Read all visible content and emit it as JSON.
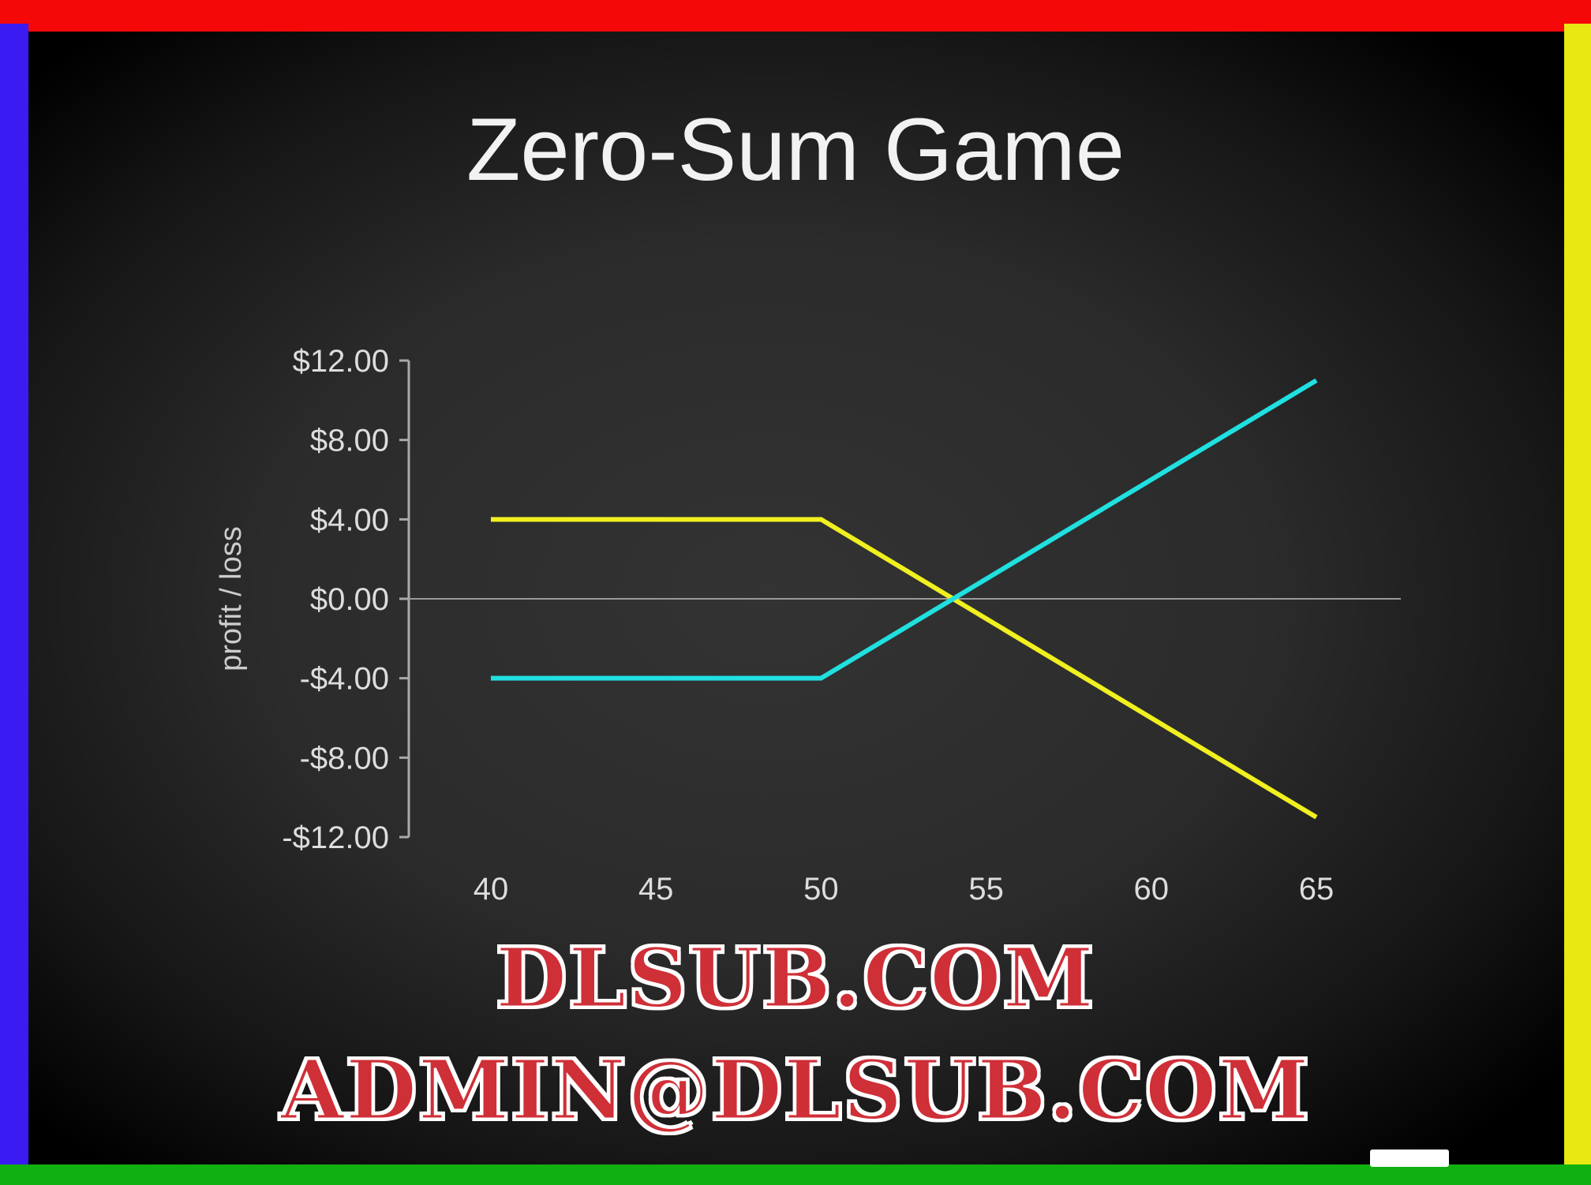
{
  "chart_data": {
    "type": "line",
    "title": "Zero-Sum Game",
    "ylabel": "profit / loss",
    "xlabel": "",
    "x_ticks": [
      "40",
      "45",
      "50",
      "55",
      "60",
      "65"
    ],
    "y_ticks": [
      "$12.00",
      "$8.00",
      "$4.00",
      "$0.00",
      "-$4.00",
      "-$8.00",
      "-$12.00"
    ],
    "xlim": [
      40,
      65
    ],
    "ylim": [
      -12,
      12
    ],
    "grid": false,
    "series": [
      {
        "color": "#f0f020",
        "x": [
          40,
          50,
          65
        ],
        "y": [
          4,
          4,
          -11
        ]
      },
      {
        "color": "#20e0e0",
        "x": [
          40,
          50,
          65
        ],
        "y": [
          -4,
          -4,
          11
        ]
      }
    ]
  },
  "watermark": {
    "line1": "DLSUB.COM",
    "line2": "ADMIN@DLSUB.COM"
  },
  "colors": {
    "border_top": "#f40808",
    "border_left": "#3a1cf2",
    "border_right": "#e8e812",
    "border_bottom": "#11b011"
  }
}
